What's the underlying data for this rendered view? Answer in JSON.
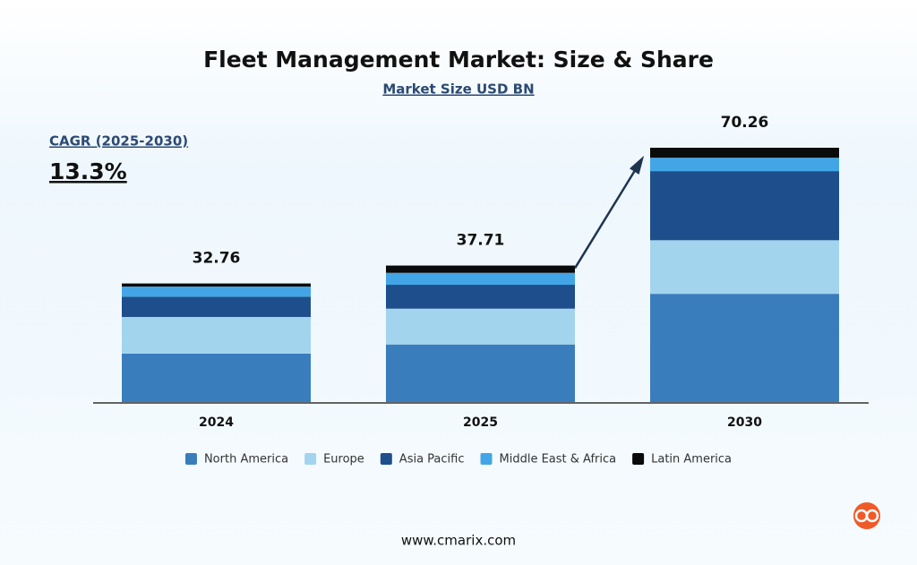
{
  "chart_data": {
    "type": "stacked-bar",
    "title": "Fleet Management Market: Size & Share",
    "subtitle": "Market Size USD BN",
    "annotation_label": "CAGR (2025-2030)",
    "annotation_value": "13.3%",
    "categories": [
      "2024",
      "2025",
      "2030"
    ],
    "totals": [
      32.76,
      37.71,
      70.26
    ],
    "series": [
      {
        "name": "North America",
        "color": "#3a7dbd",
        "values": [
          13.4,
          15.9,
          29.9
        ]
      },
      {
        "name": "Europe",
        "color": "#a3d4ee",
        "values": [
          10.1,
          9.9,
          14.8
        ]
      },
      {
        "name": "Asia Pacific",
        "color": "#1e4e8c",
        "values": [
          5.6,
          6.6,
          19.1
        ]
      },
      {
        "name": "Middle East & Africa",
        "color": "#42a5e6",
        "values": [
          2.8,
          3.3,
          3.7
        ]
      },
      {
        "name": "Latin America",
        "color": "#0a0a0a",
        "values": [
          0.86,
          2.01,
          2.76
        ]
      }
    ],
    "footer": "www.cmarix.com"
  }
}
